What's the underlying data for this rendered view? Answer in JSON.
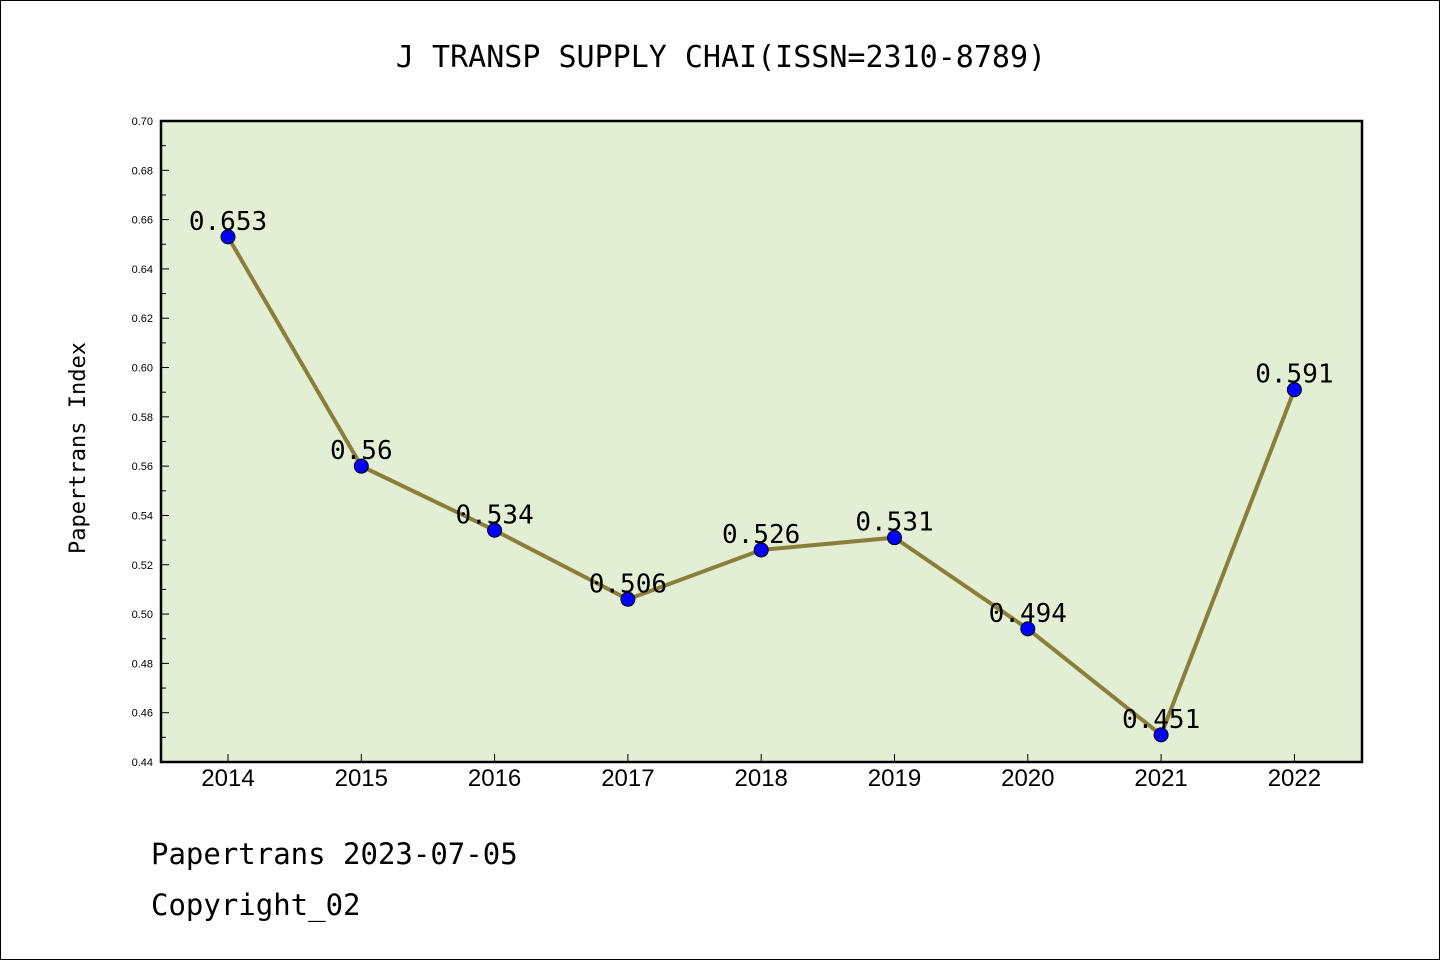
{
  "chart_data": {
    "type": "line",
    "title": "J TRANSP SUPPLY CHAI(ISSN=2310-8789)",
    "xlabel": "",
    "ylabel": "Papertrans Index",
    "categories": [
      "2014",
      "2015",
      "2016",
      "2017",
      "2018",
      "2019",
      "2020",
      "2021",
      "2022"
    ],
    "series": [
      {
        "name": "Papertrans Index",
        "values": [
          0.653,
          0.56,
          0.534,
          0.506,
          0.526,
          0.531,
          0.494,
          0.451,
          0.591
        ]
      }
    ],
    "data_labels": [
      "0.653",
      "0.56",
      "0.534",
      "0.506",
      "0.526",
      "0.531",
      "0.494",
      "0.451",
      "0.591"
    ],
    "ylim": [
      0.44,
      0.7
    ],
    "yticks": [
      "0.44",
      "0.46",
      "0.48",
      "0.50",
      "0.52",
      "0.54",
      "0.56",
      "0.58",
      "0.60",
      "0.62",
      "0.64",
      "0.66",
      "0.68",
      "0.70"
    ],
    "grid": false,
    "colors": {
      "plot_background": "#e2efd4",
      "line": "#8b7d3a",
      "marker": "#0000ff"
    }
  },
  "footer": {
    "line1": "Papertrans 2023-07-05",
    "line2": "Copyright_02"
  }
}
